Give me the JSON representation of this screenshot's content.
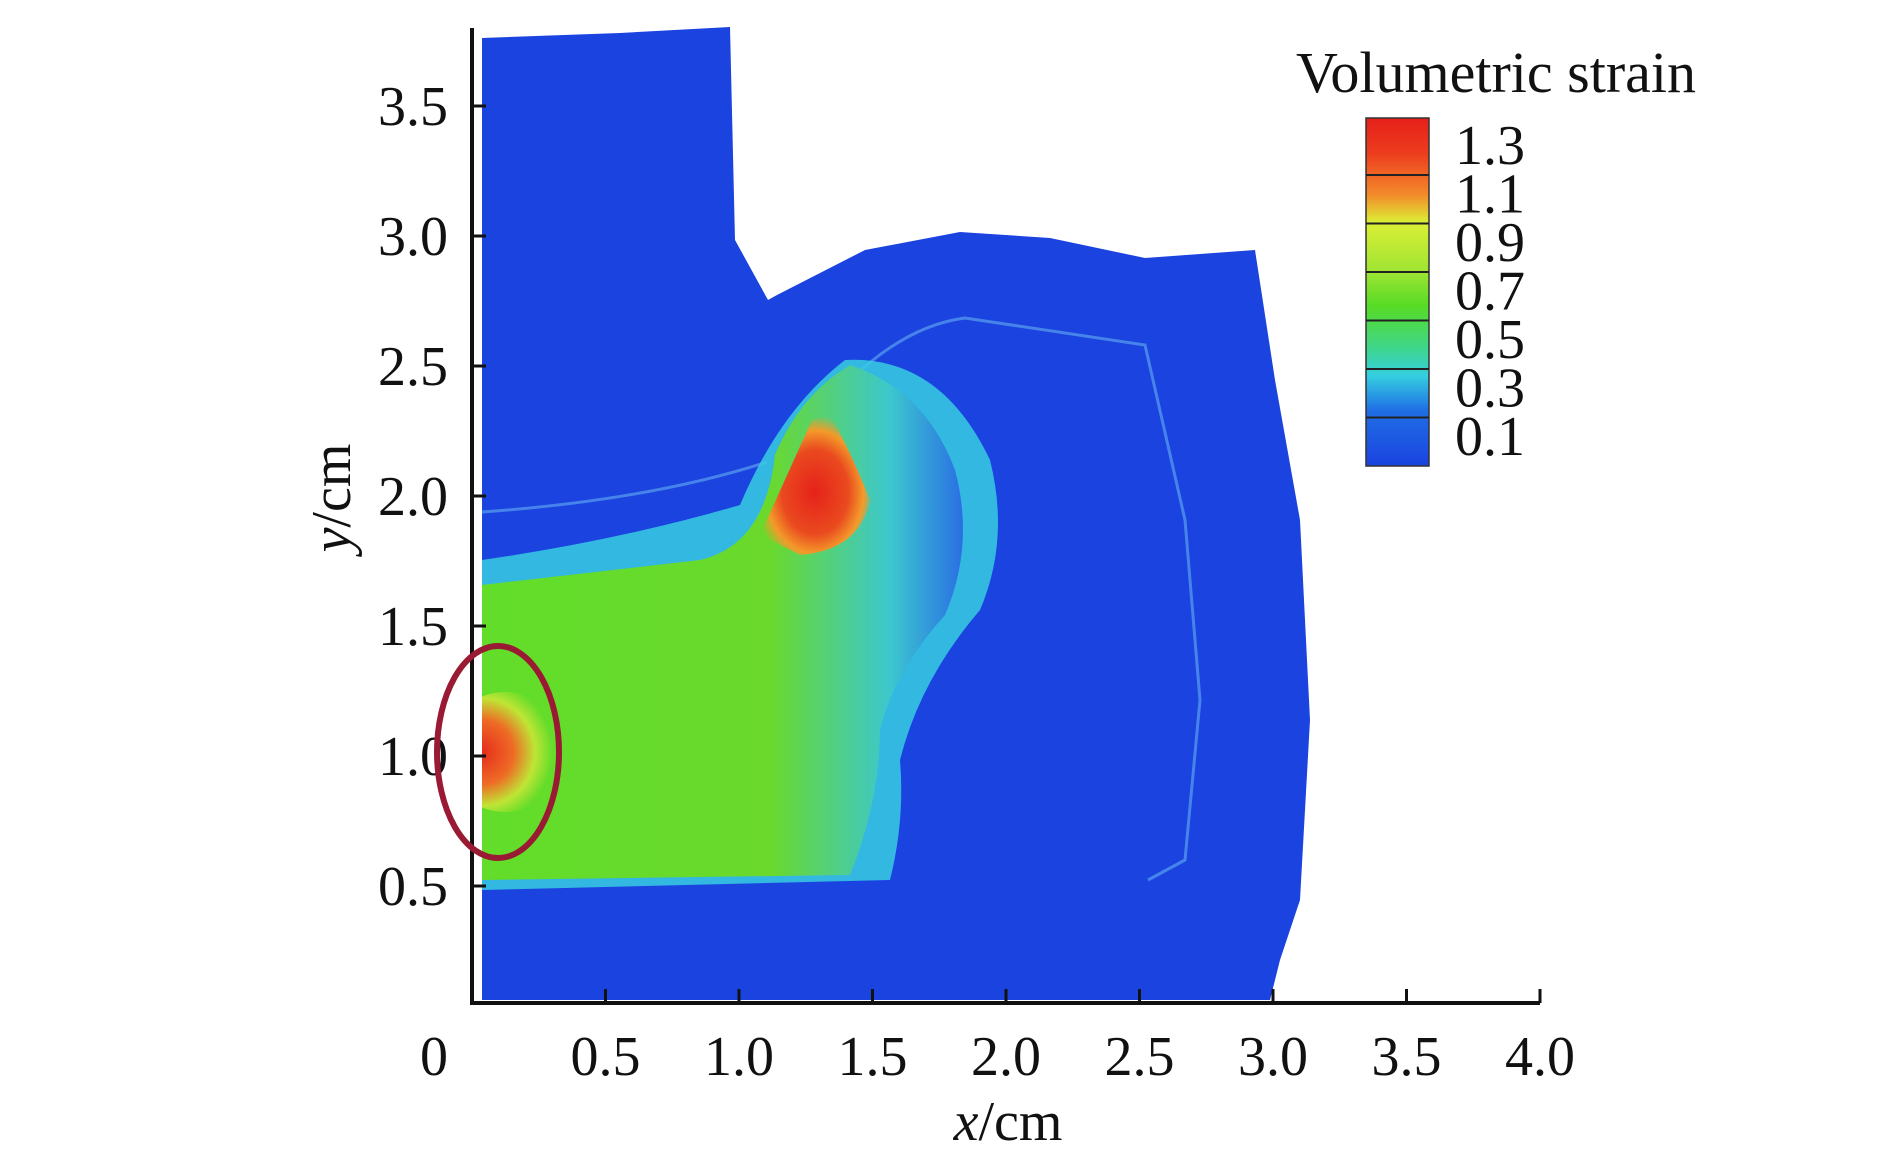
{
  "chart_data": {
    "type": "heatmap",
    "title": "",
    "xlabel_var": "x",
    "xlabel_unit": "/cm",
    "ylabel_var": "y",
    "ylabel_unit": "/cm",
    "xlim": [
      0,
      4.0
    ],
    "ylim": [
      0.05,
      3.8
    ],
    "xticks": [
      "0",
      "0.5",
      "1.0",
      "1.5",
      "2.0",
      "2.5",
      "3.0",
      "3.5",
      "4.0"
    ],
    "yticks": [
      "0.5",
      "1.0",
      "1.5",
      "2.0",
      "2.5",
      "3.0",
      "3.5"
    ],
    "colorbar": {
      "title": "Volumetric strain",
      "labels": [
        "1.3",
        "1.1",
        "0.9",
        "0.7",
        "0.5",
        "0.3",
        "0.1"
      ],
      "colors": [
        "#e8281c",
        "#f06a22",
        "#d8ef33",
        "#7fe330",
        "#4bd82a",
        "#2fd8c6",
        "#1f73e3",
        "#1a43e0"
      ]
    },
    "regions": [
      {
        "name": "background-deformed-body",
        "level": 0.1,
        "color": "#1a43e0"
      },
      {
        "name": "strain-band",
        "level": 0.8,
        "color": "#5fdc2a"
      },
      {
        "name": "hotspot-corner",
        "level": 1.3,
        "x": 1.35,
        "y": 2.0,
        "color": "#e5301c"
      },
      {
        "name": "hotspot-left-edge",
        "level": 1.2,
        "x": 0.1,
        "y": 1.0,
        "color": "#e33a1e"
      }
    ],
    "annotations": [
      {
        "type": "ellipse",
        "center": [
          0.15,
          1.0
        ],
        "color": "#9a1a33"
      }
    ],
    "grid": false,
    "legend_position": "top-right"
  }
}
